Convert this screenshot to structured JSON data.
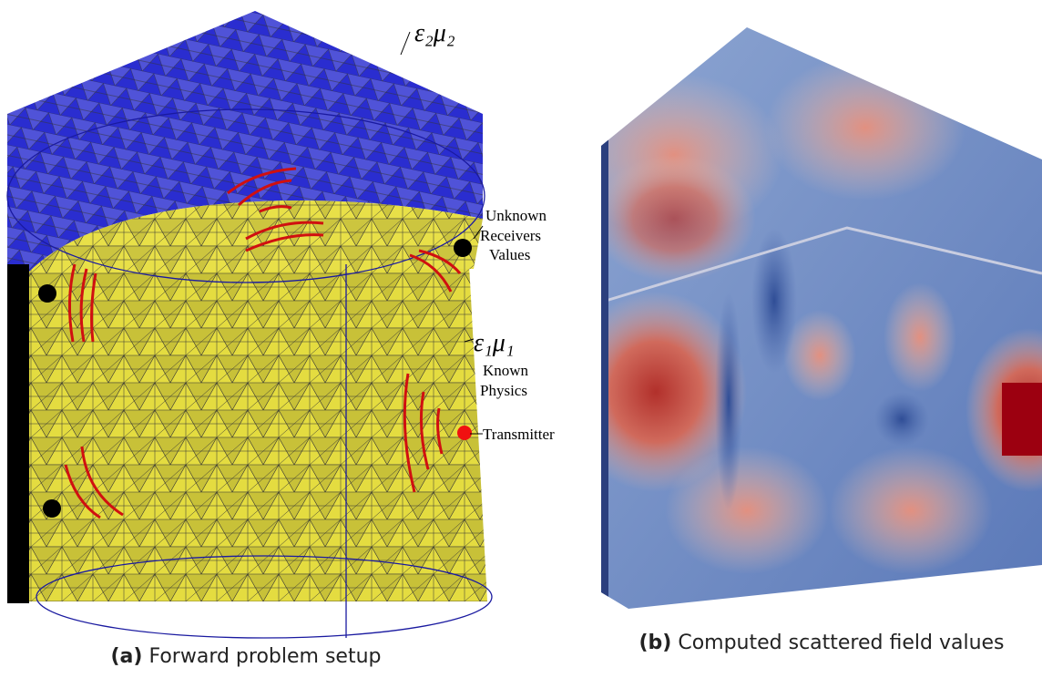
{
  "panel_a": {
    "labels": {
      "top_medium": "ε₂μ₂",
      "unknown": "Unknown",
      "receivers": "Receivers",
      "values": "Values",
      "bottom_medium": "ε₁μ₁",
      "known": "Known",
      "physics": "Physics",
      "transmitter": "Transmitter"
    },
    "caption": {
      "label": "(a)",
      "text": "Forward problem setup"
    }
  },
  "panel_b": {
    "caption": {
      "label": "(b)",
      "text": "Computed scattered field values"
    }
  }
}
